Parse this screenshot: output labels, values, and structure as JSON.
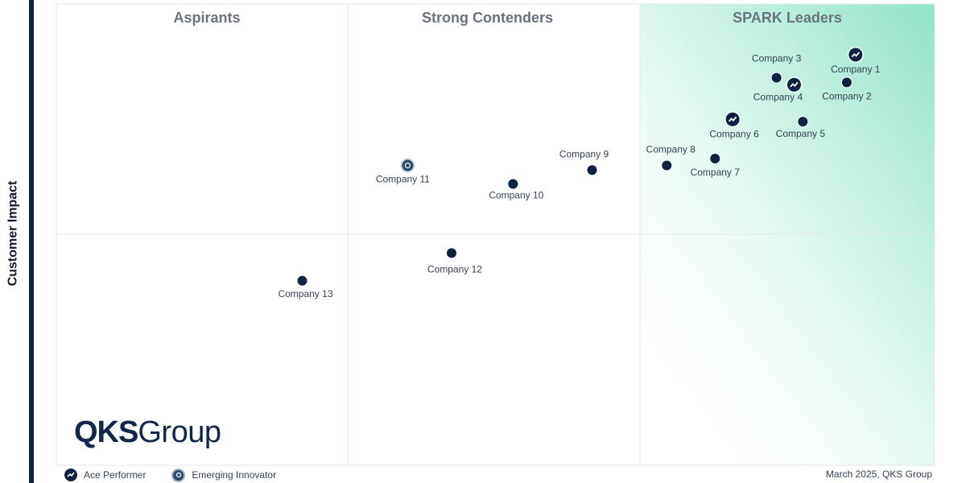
{
  "chart_data": {
    "type": "scatter",
    "ylabel": "Customer Impact",
    "xlabel": "",
    "quadrants": [
      "Aspirants",
      "Strong Contenders",
      "SPARK Leaders"
    ],
    "points": [
      {
        "name": "Company 1",
        "x": 91,
        "y": 89,
        "marker": "ace-performer"
      },
      {
        "name": "Company 2",
        "x": 90,
        "y": 83,
        "marker": "default"
      },
      {
        "name": "Company 3",
        "x": 82,
        "y": 84,
        "marker": "default"
      },
      {
        "name": "Company 4",
        "x": 84,
        "y": 82.5,
        "marker": "ace-performer"
      },
      {
        "name": "Company 5",
        "x": 85,
        "y": 74.5,
        "marker": "default"
      },
      {
        "name": "Company 6",
        "x": 77,
        "y": 75,
        "marker": "ace-performer"
      },
      {
        "name": "Company 7",
        "x": 75,
        "y": 66.5,
        "marker": "default"
      },
      {
        "name": "Company 8",
        "x": 69.5,
        "y": 65,
        "marker": "default"
      },
      {
        "name": "Company 9",
        "x": 61,
        "y": 64,
        "marker": "default"
      },
      {
        "name": "Company 10",
        "x": 52,
        "y": 61,
        "marker": "default"
      },
      {
        "name": "Company 11",
        "x": 40,
        "y": 65,
        "marker": "emerging-innovator"
      },
      {
        "name": "Company 12",
        "x": 45,
        "y": 46,
        "marker": "default"
      },
      {
        "name": "Company 13",
        "x": 28,
        "y": 40,
        "marker": "default"
      }
    ],
    "legend": [
      {
        "label": "Ace Performer",
        "icon": "ace-performer-icon"
      },
      {
        "label": "Emerging Innovator",
        "icon": "emerging-innovator-icon"
      }
    ],
    "legend_position": "bottom-left",
    "colors": {
      "point": "#0d2340",
      "leader_gradient": "#8fe3c8",
      "grid": "#e5e7eb"
    }
  },
  "branding": {
    "logo_bold": "QKS",
    "logo_rest": "Group"
  },
  "footer": {
    "date": "March 2025, QKS Group"
  }
}
